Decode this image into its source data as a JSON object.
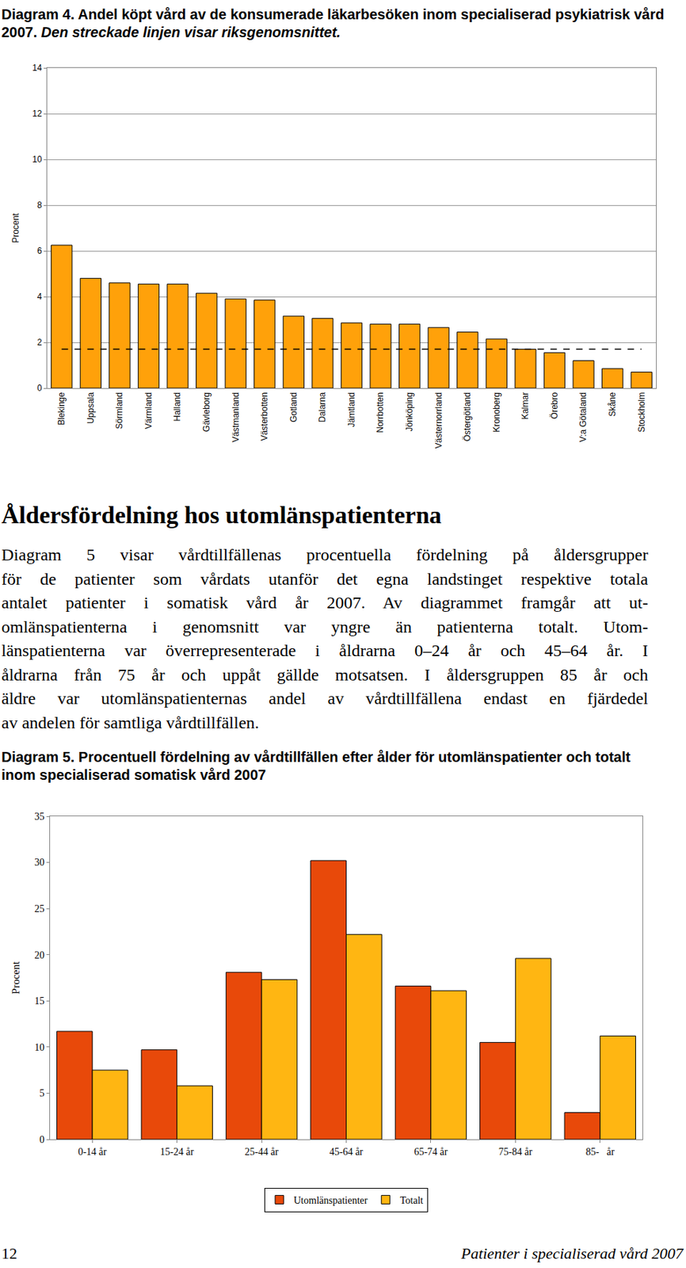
{
  "page": {
    "heading": "Åldersfördelning hos utomlänspatienterna",
    "paragraph_lines": [
      "Diagram 5 visar vårdtillfällenas procentuella fördelning på åldersgrupper",
      "för de patienter som vårdats utanför det egna landstinget respektive totala",
      "antalet patienter i somatisk vård år 2007. Av diagrammet framgår att ut-",
      "omlänspatienterna i genomsnitt var yngre än patienterna totalt. Utom-",
      "länspatienterna var överrepresenterade i åldrarna 0–24 år och 45–64 år. I",
      "åldrarna från 75 år och uppåt gällde motsatsen. I åldersgruppen 85 år och",
      "äldre var utomlänspatienternas andel av vårdtillfällena endast en fjärdedel",
      "av andelen för samtliga vårdtillfällen."
    ],
    "footer": {
      "page_number": "12",
      "text": "Patienter i specialiserad vård 2007"
    }
  },
  "chart_data": [
    {
      "type": "bar",
      "title": "Diagram 4. Andel köpt vård av de konsumerade läkarbesöken inom specialiserad psykiatrisk vård 2007.",
      "subtitle": "Den streckade linjen visar riksgenomsnittet.",
      "y_label": "Procent",
      "categories": [
        "Blekinge",
        "Uppsala",
        "Sörmland",
        "Värmland",
        "Halland",
        "Gävleborg",
        "Västmanland",
        "Västerbotten",
        "Gotland",
        "Dalarna",
        "Jämtland",
        "Norrbotten",
        "Jönköping",
        "Västernorrland",
        "Östergötland",
        "Kronoberg",
        "Kalmar",
        "Örebro",
        "V:a Götaland",
        "Skåne",
        "Stockholm"
      ],
      "values": [
        6.25,
        4.8,
        4.6,
        4.55,
        4.55,
        4.15,
        3.9,
        3.85,
        3.15,
        3.05,
        2.85,
        2.8,
        2.8,
        2.65,
        2.45,
        2.15,
        1.7,
        1.55,
        1.2,
        0.85,
        0.7
      ],
      "color": "#ffa10a",
      "average": 1.7,
      "ylim": [
        0,
        14
      ],
      "yticks": [
        0,
        2,
        4,
        6,
        8,
        10,
        12,
        14
      ],
      "grid": true
    },
    {
      "type": "bar",
      "title": "Diagram 5. Procentuell fördelning av vårdtillfällen efter ålder för utomlänspatienter och totalt inom specialiserad somatisk vård 2007",
      "y_label": "Procent",
      "categories": [
        "0-14 år",
        "15-24 år",
        "25-44 år",
        "45-64 år",
        "65-74 år",
        "75-84 år",
        "85-   år"
      ],
      "series": [
        {
          "name": "Utomlänspatienter",
          "color": "#e8490a",
          "values": [
            11.7,
            9.7,
            18.1,
            30.2,
            16.6,
            10.5,
            2.9
          ]
        },
        {
          "name": "Totalt",
          "color": "#ffb612",
          "values": [
            7.5,
            5.8,
            17.3,
            22.2,
            16.1,
            19.6,
            11.2
          ]
        }
      ],
      "ylim": [
        0,
        35
      ],
      "yticks": [
        0,
        5,
        10,
        15,
        20,
        25,
        30,
        35
      ],
      "grid": false,
      "legend": "bottom"
    }
  ]
}
